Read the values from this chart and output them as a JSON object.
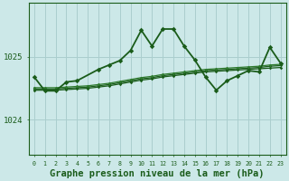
{
  "background_color": "#cce8e8",
  "grid_color": "#aacece",
  "line_color_dark": "#1a5c1a",
  "line_color_mid": "#2e7a2e",
  "xlabel": "Graphe pression niveau de la mer (hPa)",
  "xlabel_fontsize": 7.5,
  "ytick_labels": [
    "1025",
    "1024"
  ],
  "ytick_positions": [
    1025.0,
    1024.0
  ],
  "xlim": [
    -0.5,
    23.5
  ],
  "ylim": [
    1023.45,
    1025.85
  ],
  "xticks": [
    0,
    1,
    2,
    3,
    4,
    5,
    6,
    7,
    8,
    9,
    10,
    11,
    12,
    13,
    14,
    15,
    16,
    17,
    18,
    19,
    20,
    21,
    22,
    23
  ],
  "main_line": {
    "x": [
      0,
      1,
      2,
      3,
      4,
      6,
      7,
      8,
      9,
      10,
      11,
      12,
      13,
      14,
      15,
      16,
      17,
      18,
      19,
      20,
      21,
      22,
      23
    ],
    "y": [
      1024.68,
      1024.46,
      1024.46,
      1024.6,
      1024.62,
      1024.8,
      1024.87,
      1024.94,
      1025.1,
      1025.42,
      1025.17,
      1025.44,
      1025.44,
      1025.17,
      1024.95,
      1024.68,
      1024.47,
      1024.62,
      1024.7,
      1024.78,
      1024.76,
      1025.15,
      1024.9
    ]
  },
  "slow_lines": [
    {
      "x": [
        0,
        1,
        2,
        3,
        4,
        5,
        6,
        7,
        8,
        9,
        10,
        11,
        12,
        13,
        14,
        15,
        16,
        17,
        18,
        19,
        20,
        21,
        22,
        23
      ],
      "y": [
        1024.47,
        1024.47,
        1024.47,
        1024.48,
        1024.49,
        1024.5,
        1024.52,
        1024.54,
        1024.57,
        1024.6,
        1024.63,
        1024.65,
        1024.68,
        1024.7,
        1024.72,
        1024.74,
        1024.76,
        1024.77,
        1024.78,
        1024.79,
        1024.8,
        1024.81,
        1024.82,
        1024.83
      ]
    },
    {
      "x": [
        0,
        1,
        2,
        3,
        4,
        5,
        6,
        7,
        8,
        9,
        10,
        11,
        12,
        13,
        14,
        15,
        16,
        17,
        18,
        19,
        20,
        21,
        22,
        23
      ],
      "y": [
        1024.49,
        1024.49,
        1024.49,
        1024.5,
        1024.51,
        1024.52,
        1024.54,
        1024.56,
        1024.59,
        1024.62,
        1024.65,
        1024.67,
        1024.7,
        1024.72,
        1024.74,
        1024.76,
        1024.78,
        1024.79,
        1024.8,
        1024.81,
        1024.82,
        1024.83,
        1024.85,
        1024.86
      ]
    },
    {
      "x": [
        0,
        1,
        2,
        3,
        4,
        5,
        6,
        7,
        8,
        9,
        10,
        11,
        12,
        13,
        14,
        15,
        16,
        17,
        18,
        19,
        20,
        21,
        22,
        23
      ],
      "y": [
        1024.51,
        1024.51,
        1024.51,
        1024.52,
        1024.53,
        1024.54,
        1024.56,
        1024.58,
        1024.61,
        1024.64,
        1024.67,
        1024.69,
        1024.72,
        1024.74,
        1024.76,
        1024.78,
        1024.8,
        1024.81,
        1024.82,
        1024.83,
        1024.84,
        1024.85,
        1024.87,
        1024.88
      ]
    }
  ]
}
